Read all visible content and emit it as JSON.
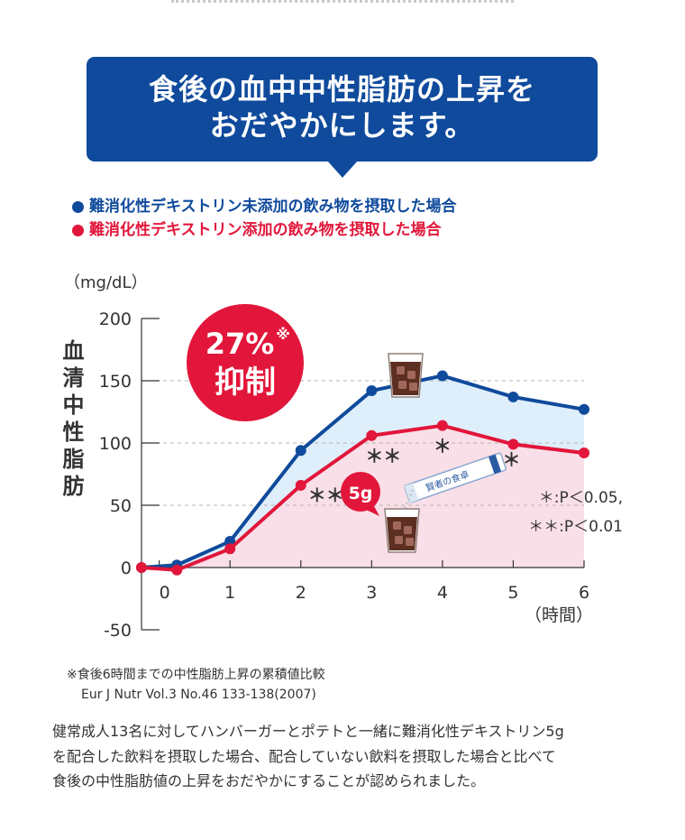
{
  "header": {
    "title_lines": [
      "食後の血中中性脂肪の上昇を",
      "おだやかにします。"
    ],
    "accent_color": "#0f4a9c"
  },
  "legend": [
    {
      "label": "難消化性デキストリン未添加の飲み物を摂取した場合",
      "color": "#0f4a9c"
    },
    {
      "label": "難消化性デキストリン添加の飲み物を摂取した場合",
      "color": "#e2163a"
    }
  ],
  "chart_data": {
    "type": "line",
    "ylabel": "血清中性脂肪",
    "yunit": "（mg/dL）",
    "xunit": "（時間）",
    "ylim": [
      -50,
      200
    ],
    "yticks": [
      200,
      150,
      100,
      50,
      0,
      -50
    ],
    "xlim": [
      -0.25,
      6
    ],
    "xticks": [
      0,
      1,
      2,
      3,
      4,
      5,
      6
    ],
    "grid_y": [
      150,
      100,
      50
    ],
    "series": [
      {
        "name": "難消化性デキストリン未添加の飲み物を摂取した場合",
        "color": "#0f4a9c",
        "x": [
          -0.25,
          0.25,
          1,
          2,
          3,
          4,
          5,
          6
        ],
        "y": [
          0,
          2,
          21,
          94,
          142,
          154,
          137,
          127
        ]
      },
      {
        "name": "難消化性デキストリン添加の飲み物を摂取した場合",
        "color": "#e2163a",
        "x": [
          -0.25,
          0.25,
          1,
          2,
          3,
          4,
          5,
          6
        ],
        "y": [
          0,
          -2,
          15,
          66,
          106,
          114,
          99,
          92
        ]
      }
    ],
    "significance": [
      {
        "x": 2,
        "label": "**"
      },
      {
        "x": 3,
        "label": "**"
      },
      {
        "x": 4,
        "label": "*"
      },
      {
        "x": 5,
        "label": "*"
      }
    ],
    "badge": {
      "value": "27%",
      "mark": "※",
      "text": "抑制"
    },
    "dose_label": "5g",
    "product_label": "賢者の食卓",
    "p_values": [
      "＊:P＜0.05,",
      "＊＊:P＜0.01"
    ],
    "fill_between_color": "#deeefa",
    "fill_under_color": "#f9dfe8"
  },
  "footnote": {
    "note": "※食後6時間までの中性脂肪上昇の累積値比較",
    "reference": "Eur J Nutr Vol.3 No.46 133-138(2007)"
  },
  "description_lines": [
    "健常成人13名に対してハンバーガーとポテトと一緒に難消化性デキストリン5g",
    "を配合した飲料を摂取した場合、配合していない飲料を摂取した場合と比べて",
    "食後の中性脂肪値の上昇をおだやかにすることが認められました。"
  ]
}
